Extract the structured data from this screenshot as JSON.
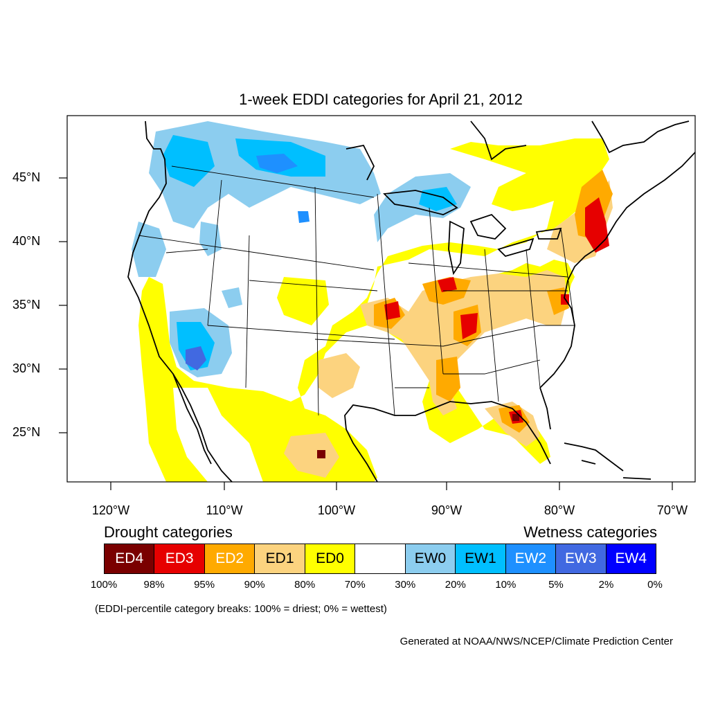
{
  "title": "1-week EDDI categories for April 21, 2012",
  "lat_labels": [
    "45°N",
    "40°N",
    "35°N",
    "30°N",
    "25°N"
  ],
  "lon_labels": [
    "120°W",
    "110°W",
    "100°W",
    "90°W",
    "80°W",
    "70°W"
  ],
  "legend": {
    "drought_heading": "Drought categories",
    "wetness_heading": "Wetness categories",
    "categories": [
      {
        "label": "ED4",
        "color": "#7a0000",
        "text_color": "#ffffff"
      },
      {
        "label": "ED3",
        "color": "#e60000",
        "text_color": "#ffffff"
      },
      {
        "label": "ED2",
        "color": "#ffaa00",
        "text_color": "#ffffff"
      },
      {
        "label": "ED1",
        "color": "#fcd37f",
        "text_color": "#000000"
      },
      {
        "label": "ED0",
        "color": "#ffff00",
        "text_color": "#000000"
      },
      {
        "label": "",
        "color": "#ffffff",
        "text_color": "#000000"
      },
      {
        "label": "EW0",
        "color": "#8ccdef",
        "text_color": "#000000"
      },
      {
        "label": "EW1",
        "color": "#00bfff",
        "text_color": "#000000"
      },
      {
        "label": "EW2",
        "color": "#1e90ff",
        "text_color": "#ffffff"
      },
      {
        "label": "EW3",
        "color": "#4169e1",
        "text_color": "#ffffff"
      },
      {
        "label": "EW4",
        "color": "#0000ff",
        "text_color": "#ffffff"
      }
    ],
    "breaks": [
      "100%",
      "98%",
      "95%",
      "90%",
      "80%",
      "70%",
      "30%",
      "20%",
      "10%",
      "5%",
      "2%",
      "0%"
    ]
  },
  "note": "(EDDI-percentile category breaks: 100% = driest; 0% = wettest)",
  "credit": "Generated at NOAA/NWS/NCEP/Climate Prediction Center"
}
